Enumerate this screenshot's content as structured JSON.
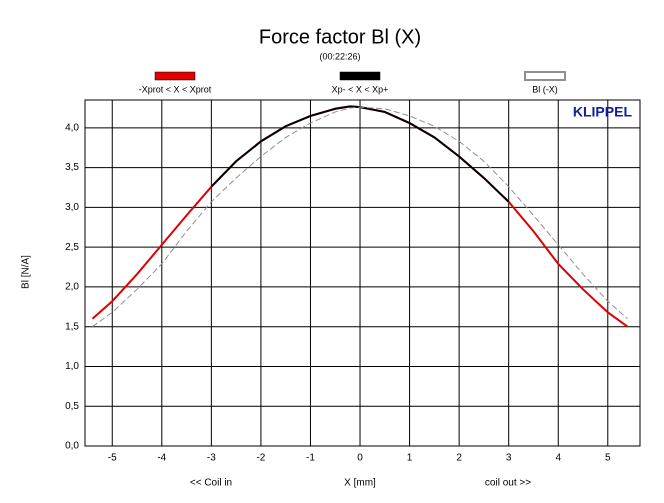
{
  "chart_data": {
    "type": "line",
    "title": "Force factor Bl (X)",
    "subtitle": "(00:22:26)",
    "y_label": "Bl [N/A]",
    "x_label": "X [mm]",
    "x_label_left": "<< Coil in",
    "x_label_right": "coil out >>",
    "logo": "KLIPPEL",
    "x": [
      -5.4,
      -5,
      -4.5,
      -4,
      -3.5,
      -3,
      -2.5,
      -2,
      -1.5,
      -1,
      -0.5,
      -0.2,
      0,
      0.5,
      1,
      1.5,
      2,
      2.5,
      3,
      3.5,
      4,
      4.5,
      5,
      5.4
    ],
    "series": [
      {
        "name": "-Xprot < X < Xprot",
        "color": "#e00000",
        "dashed": false,
        "values": [
          1.6,
          1.82,
          2.16,
          2.53,
          2.9,
          3.26,
          3.58,
          3.83,
          4.02,
          4.15,
          4.24,
          4.27,
          4.26,
          4.2,
          4.06,
          3.88,
          3.64,
          3.37,
          3.07,
          2.7,
          2.29,
          1.97,
          1.68,
          1.5
        ]
      },
      {
        "name": "Xp- < X < Xp+",
        "color": "#000000",
        "dashed": false,
        "values": [
          null,
          null,
          null,
          null,
          null,
          3.26,
          3.58,
          3.83,
          4.02,
          4.15,
          4.24,
          4.27,
          4.26,
          4.2,
          4.06,
          3.88,
          3.64,
          3.37,
          3.07,
          null,
          null,
          null,
          null,
          null
        ]
      },
      {
        "name": "Bl (-X)",
        "color": "#909090",
        "dashed": true,
        "values": [
          1.5,
          1.68,
          1.97,
          2.29,
          2.7,
          3.07,
          3.37,
          3.64,
          3.88,
          4.06,
          4.2,
          4.25,
          4.26,
          4.24,
          4.15,
          4.02,
          3.83,
          3.58,
          3.26,
          2.9,
          2.53,
          2.16,
          1.82,
          1.6
        ]
      }
    ],
    "xlim": [
      -5.55,
      5.65
    ],
    "xticks": [
      -5,
      -4,
      -3,
      -2,
      -1,
      0,
      1,
      2,
      3,
      4,
      5
    ],
    "ylim": [
      0,
      4.35
    ],
    "yticks": [
      {
        "value": 0,
        "label": "0,0"
      },
      {
        "value": 0.5,
        "label": "0,5"
      },
      {
        "value": 1,
        "label": "1,0"
      },
      {
        "value": 1.5,
        "label": "1,5"
      },
      {
        "value": 2,
        "label": "2,0"
      },
      {
        "value": 2.5,
        "label": "2,5"
      },
      {
        "value": 3,
        "label": "3,0"
      },
      {
        "value": 3.5,
        "label": "3,5"
      },
      {
        "value": 4,
        "label": "4,0"
      }
    ],
    "grid": true
  }
}
